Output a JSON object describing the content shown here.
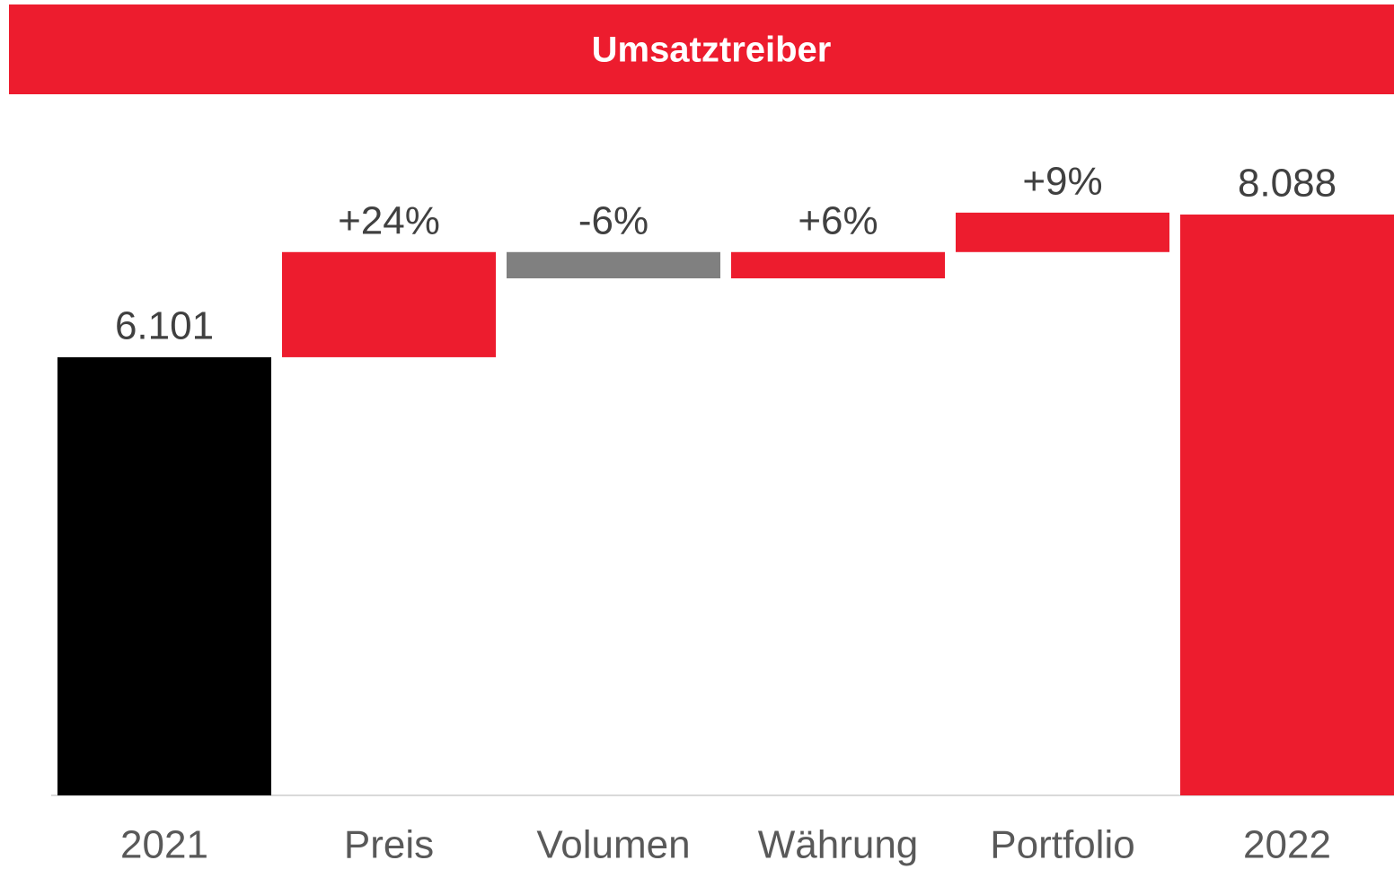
{
  "chart_data": {
    "type": "waterfall",
    "title": "Umsatztreiber",
    "categories": [
      "2021",
      "Preis",
      "Volumen",
      "Währung",
      "Portfolio",
      "2022"
    ],
    "values": [
      6101,
      24,
      -6,
      6,
      9,
      8088
    ],
    "value_labels": [
      "6.101",
      "+24%",
      "-6%",
      "+6%",
      "+9%",
      "8.088"
    ],
    "totals": [
      true,
      false,
      false,
      false,
      false,
      true
    ],
    "colors": [
      "#000000",
      "#ed1c2e",
      "#808080",
      "#ed1c2e",
      "#ed1c2e",
      "#ed1c2e"
    ],
    "ylim": [
      0,
      8500
    ]
  }
}
